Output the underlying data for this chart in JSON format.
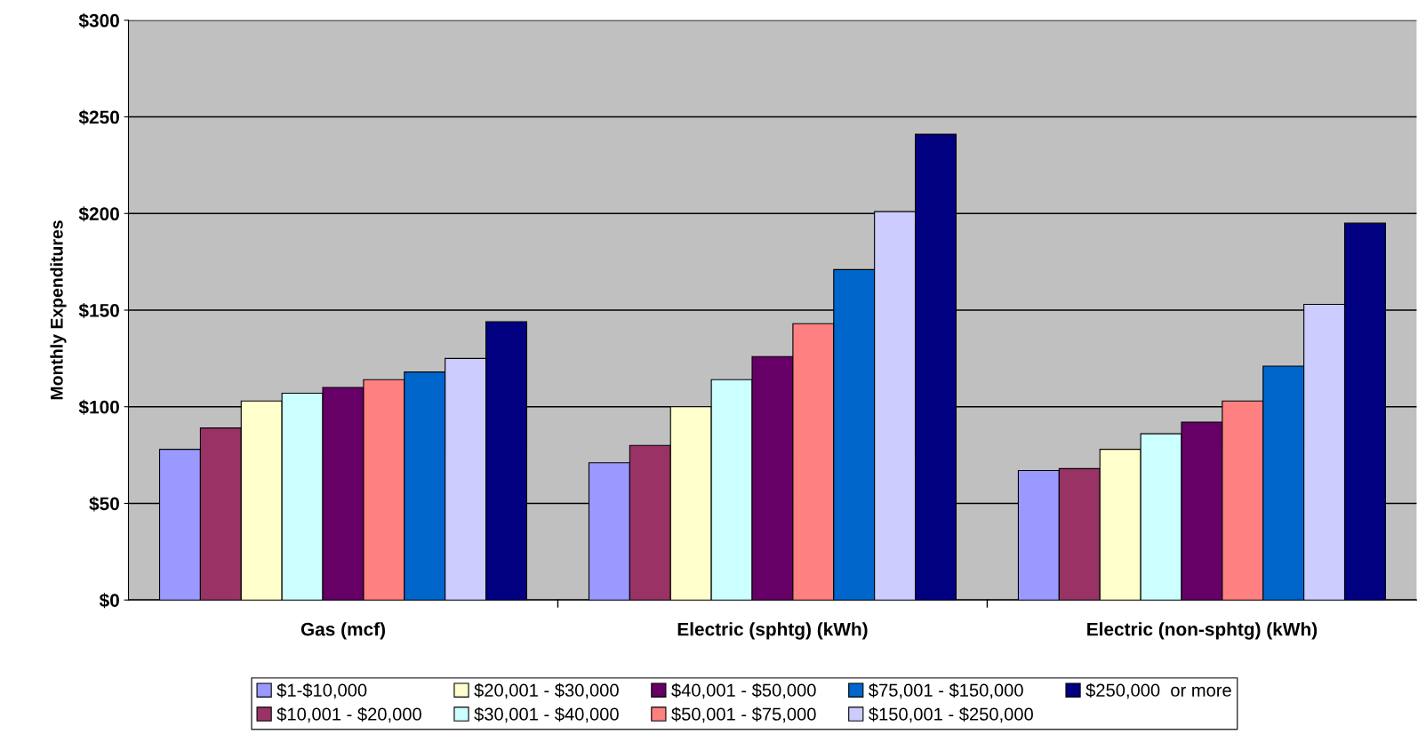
{
  "chart_data": {
    "type": "bar",
    "ylabel": "Monthly Expenditures",
    "categories": [
      "Gas (mcf)",
      "Electric (sphtg) (kWh)",
      "Electric (non-sphtg) (kWh)"
    ],
    "ylim": [
      0,
      300
    ],
    "yticks": [
      {
        "value": 0,
        "label": "$0"
      },
      {
        "value": 50,
        "label": "$50"
      },
      {
        "value": 100,
        "label": "$100"
      },
      {
        "value": 150,
        "label": "$150"
      },
      {
        "value": 200,
        "label": "$200"
      },
      {
        "value": 250,
        "label": "$250"
      },
      {
        "value": 300,
        "label": "$300"
      }
    ],
    "grid": "y",
    "legend": "bottom",
    "series": [
      {
        "name": "$1-$10,000",
        "color": "#9999ff",
        "values": [
          78,
          71,
          67
        ]
      },
      {
        "name": "$10,001 - $20,000",
        "color": "#993366",
        "values": [
          89,
          80,
          68
        ]
      },
      {
        "name": "$20,001 - $30,000",
        "color": "#ffffcc",
        "values": [
          103,
          100,
          78
        ]
      },
      {
        "name": "$30,001 - $40,000",
        "color": "#ccffff",
        "values": [
          107,
          114,
          86
        ]
      },
      {
        "name": "$40,001 - $50,000",
        "color": "#660066",
        "values": [
          110,
          126,
          92
        ]
      },
      {
        "name": "$50,001 - $75,000",
        "color": "#ff8080",
        "values": [
          114,
          143,
          103
        ]
      },
      {
        "name": "$75,001 - $150,000",
        "color": "#0066cc",
        "values": [
          118,
          171,
          121
        ]
      },
      {
        "name": "$150,001 - $250,000",
        "color": "#ccccff",
        "values": [
          125,
          201,
          153
        ]
      },
      {
        "name": "$250,000  or more",
        "color": "#000080",
        "values": [
          144,
          241,
          195
        ]
      }
    ]
  }
}
